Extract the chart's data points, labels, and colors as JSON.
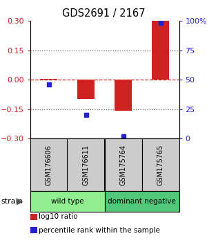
{
  "title": "GDS2691 / 2167",
  "samples": [
    "GSM176606",
    "GSM176611",
    "GSM175764",
    "GSM175765"
  ],
  "log10_ratio": [
    0.005,
    -0.1,
    -0.16,
    0.3
  ],
  "percentile_rank": [
    46,
    20,
    2,
    98
  ],
  "ylim_left": [
    -0.3,
    0.3
  ],
  "ylim_right": [
    0,
    100
  ],
  "yticks_left": [
    -0.3,
    -0.15,
    0,
    0.15,
    0.3
  ],
  "yticks_right": [
    0,
    25,
    50,
    75,
    100
  ],
  "ytick_labels_right": [
    "0",
    "25",
    "50",
    "75",
    "100%"
  ],
  "groups": [
    {
      "label": "wild type",
      "indices": [
        0,
        1
      ],
      "color": "#90EE90"
    },
    {
      "label": "dominant negative",
      "indices": [
        2,
        3
      ],
      "color": "#50C878"
    }
  ],
  "bar_color": "#CC2222",
  "dot_color": "#2222CC",
  "zero_line_color": "#CC2222",
  "dotted_line_color": "#666666",
  "bar_width": 0.45,
  "legend_items": [
    {
      "label": "log10 ratio",
      "color": "#CC2222"
    },
    {
      "label": "percentile rank within the sample",
      "color": "#2222CC"
    }
  ],
  "sample_box_color": "#CCCCCC",
  "strain_label": "strain",
  "arrow": "▶"
}
